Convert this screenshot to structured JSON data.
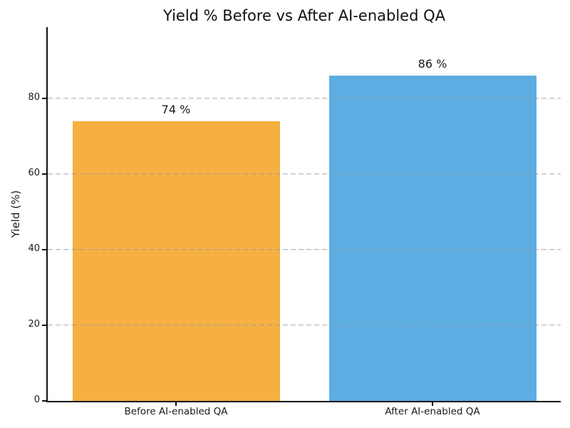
{
  "chart_data": {
    "type": "bar",
    "title": "Yield % Before vs After AI-enabled QA",
    "categories": [
      "Before AI-enabled QA",
      "After AI-enabled QA"
    ],
    "values": [
      74,
      86
    ],
    "bar_labels": [
      "74 %",
      "86 %"
    ],
    "bar_colors": [
      "#F5B041",
      "#5DADE2"
    ],
    "xlabel": "",
    "ylabel": "Yield (%)",
    "yticks": [
      0,
      20,
      40,
      60,
      80
    ],
    "ylim": [
      0,
      98.9
    ],
    "grid": {
      "axis": "y",
      "style": "dashed",
      "color": "#c8c8c8",
      "drawn_over_bars": true
    },
    "legend": "none",
    "text_color": "#1a1a1a",
    "background": "#ffffff"
  }
}
